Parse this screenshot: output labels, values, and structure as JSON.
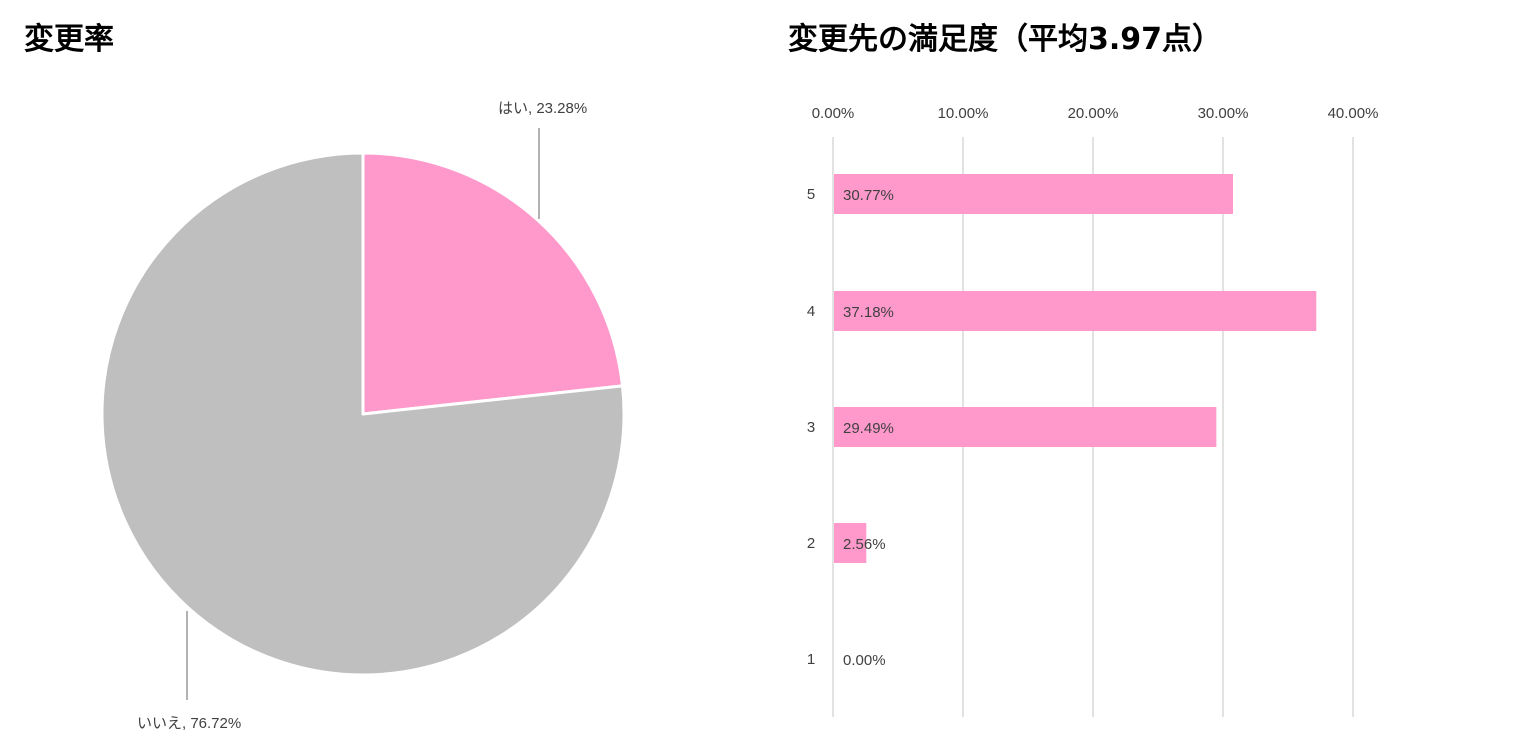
{
  "pie_title": "変更率",
  "bar_title": "変更先の満足度（平均3.97点）",
  "colors": {
    "accent": "#FF99CC",
    "secondary": "#BFBFBF",
    "gridline": "#D9D9D9",
    "text": "#404040"
  },
  "chart_data": [
    {
      "type": "pie",
      "title": "変更率",
      "slices": [
        {
          "label": "はい",
          "value": 23.28,
          "display": "はい, 23.28%",
          "color": "#FF99CC"
        },
        {
          "label": "いいえ",
          "value": 76.72,
          "display": "いいえ, 76.72%",
          "color": "#BFBFBF"
        }
      ]
    },
    {
      "type": "bar",
      "orientation": "horizontal",
      "title": "変更先の満足度（平均3.97点）",
      "categories": [
        "5",
        "4",
        "3",
        "2",
        "1"
      ],
      "values": [
        30.77,
        37.18,
        29.49,
        2.56,
        0.0
      ],
      "data_labels": [
        "30.77%",
        "37.18%",
        "29.49%",
        "2.56%",
        "0.00%"
      ],
      "xlim": [
        0,
        40
      ],
      "x_ticks": [
        "0.00%",
        "10.00%",
        "20.00%",
        "30.00%",
        "40.00%"
      ],
      "x_tick_values": [
        0,
        10,
        20,
        30,
        40
      ],
      "grid": true,
      "axis_position": "top",
      "color": "#FF99CC"
    }
  ]
}
